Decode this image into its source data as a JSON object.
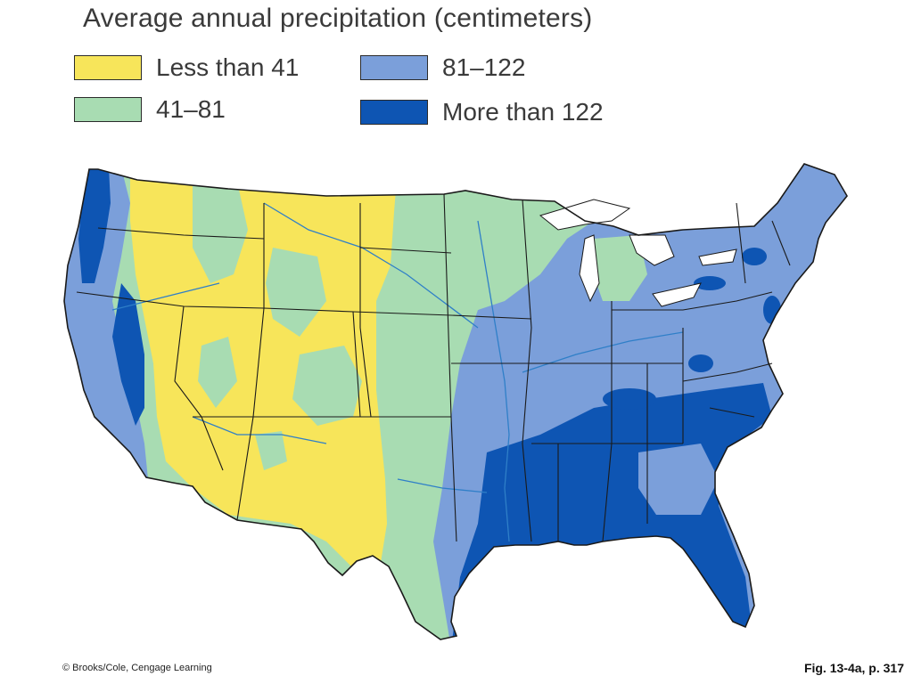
{
  "title": "Average annual precipitation (centimeters)",
  "legend": [
    {
      "label": "Less than 41",
      "color": "#f7e55a"
    },
    {
      "label": "41–81",
      "color": "#a8dcb2"
    },
    {
      "label": "81–122",
      "color": "#7b9fda"
    },
    {
      "label": "More than 122",
      "color": "#0e55b3"
    }
  ],
  "credit": "© Brooks/Cole, Cengage Learning",
  "figure_ref": "Fig. 13-4a, p. 317"
}
